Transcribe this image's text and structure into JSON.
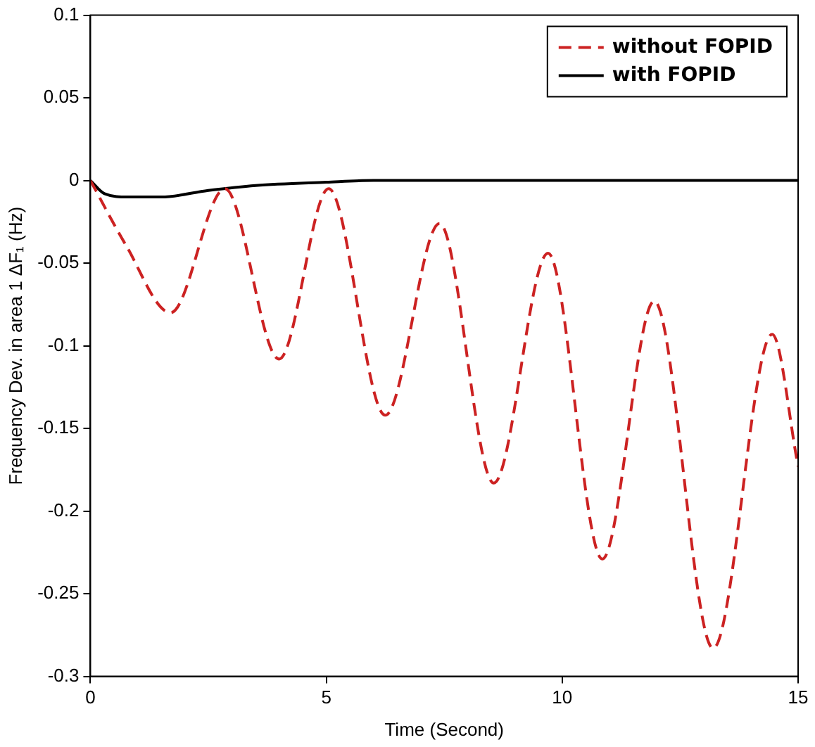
{
  "chart_data": {
    "type": "line",
    "xlabel": "Time (Second)",
    "ylabel": "Frequency Dev. in area 1 ΔF₁ (Hz)",
    "xlim": [
      0,
      15
    ],
    "xticks": [
      0,
      5,
      10,
      15
    ],
    "ylim": [
      -0.3,
      0.1
    ],
    "yticks": [
      -0.3,
      -0.25,
      -0.2,
      -0.15,
      -0.1,
      -0.05,
      0,
      0.05,
      0.1
    ],
    "grid": false,
    "legend": "top right",
    "marker": "none",
    "series": [
      {
        "name": "without FOPID",
        "color": "#cc2222",
        "line_style": "dashed",
        "x": [
          0,
          0.75,
          1.7,
          2.85,
          4.0,
          5.05,
          6.25,
          7.4,
          8.55,
          9.7,
          10.85,
          11.95,
          13.2,
          14.45,
          15
        ],
        "values": [
          0,
          -0.039,
          -0.08,
          -0.005,
          -0.108,
          -0.005,
          -0.142,
          -0.026,
          -0.183,
          -0.044,
          -0.229,
          -0.073,
          -0.283,
          -0.093,
          -0.173
        ]
      },
      {
        "name": "with FOPID",
        "color": "#000000",
        "line_style": "solid",
        "x": [
          0,
          0.3,
          0.8,
          1.5,
          2.5,
          3.5,
          5,
          6,
          15
        ],
        "values": [
          0,
          -0.008,
          -0.01,
          -0.01,
          -0.006,
          -0.003,
          -0.001,
          0,
          0
        ]
      }
    ]
  }
}
